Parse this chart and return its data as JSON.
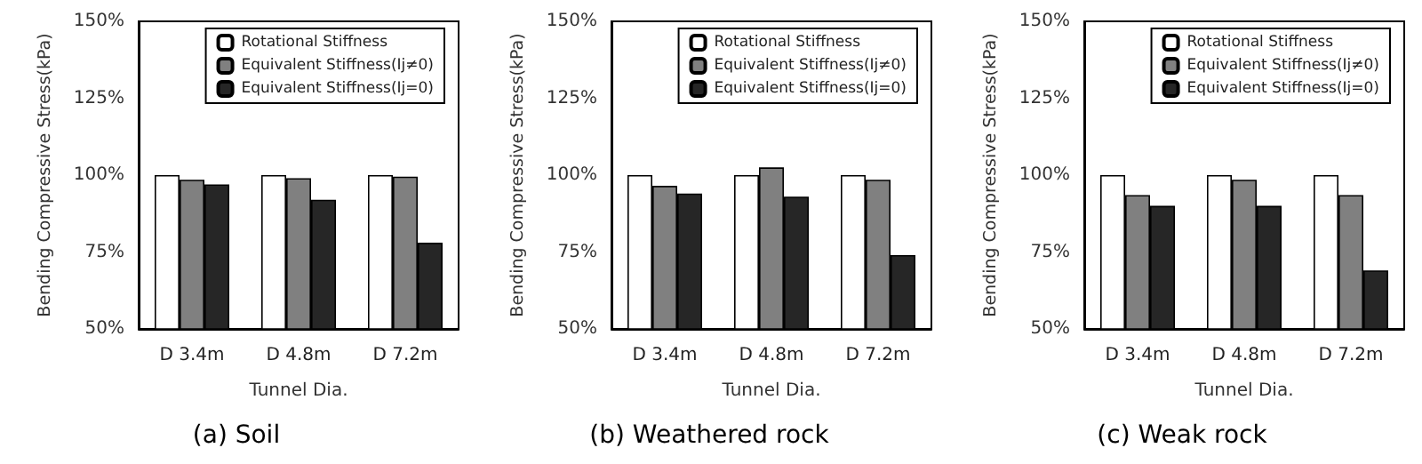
{
  "chart_data": [
    {
      "type": "bar",
      "title": "(a) Soil",
      "xlabel": "Tunnel Dia.",
      "ylabel": "Bending Compressive Stress(kPa)",
      "categories": [
        "D 3.4m",
        "D 4.8m",
        "D 7.2m"
      ],
      "ylim": [
        50,
        150
      ],
      "yticks": [
        {
          "value": 50,
          "label": "50%"
        },
        {
          "value": 75,
          "label": "75%"
        },
        {
          "value": 100,
          "label": "100%"
        },
        {
          "value": 125,
          "label": "125%"
        },
        {
          "value": 150,
          "label": "150%"
        }
      ],
      "grid": false,
      "legend": "top",
      "series": [
        {
          "name": "Rotational Stiffness",
          "color": "#ffffff",
          "values": [
            100,
            100,
            100
          ]
        },
        {
          "name": "Equivalent Stiffness(Ij≠0)",
          "color": "#808080",
          "values": [
            98.5,
            99,
            99.5
          ]
        },
        {
          "name": "Equivalent Stiffness(Ij=0)",
          "color": "#262626",
          "values": [
            97,
            92,
            78
          ]
        }
      ]
    },
    {
      "type": "bar",
      "title": "(b) Weathered rock",
      "xlabel": "Tunnel Dia.",
      "ylabel": "Bending Compressive Stress(kPa)",
      "categories": [
        "D 3.4m",
        "D 4.8m",
        "D 7.2m"
      ],
      "ylim": [
        50,
        150
      ],
      "yticks": [
        {
          "value": 50,
          "label": "50%"
        },
        {
          "value": 75,
          "label": "75%"
        },
        {
          "value": 100,
          "label": "100%"
        },
        {
          "value": 125,
          "label": "125%"
        },
        {
          "value": 150,
          "label": "150%"
        }
      ],
      "grid": false,
      "legend": "top",
      "series": [
        {
          "name": "Rotational Stiffness",
          "color": "#ffffff",
          "values": [
            100,
            100,
            100
          ]
        },
        {
          "name": "Equivalent Stiffness(Ij≠0)",
          "color": "#808080",
          "values": [
            96.5,
            102.5,
            98.5
          ]
        },
        {
          "name": "Equivalent Stiffness(Ij=0)",
          "color": "#262626",
          "values": [
            94,
            93,
            74
          ]
        }
      ]
    },
    {
      "type": "bar",
      "title": "(c) Weak rock",
      "xlabel": "Tunnel Dia.",
      "ylabel": "Bending Compressive Stress(kPa)",
      "categories": [
        "D 3.4m",
        "D 4.8m",
        "D 7.2m"
      ],
      "ylim": [
        50,
        150
      ],
      "yticks": [
        {
          "value": 50,
          "label": "50%"
        },
        {
          "value": 75,
          "label": "75%"
        },
        {
          "value": 100,
          "label": "100%"
        },
        {
          "value": 125,
          "label": "125%"
        },
        {
          "value": 150,
          "label": "150%"
        }
      ],
      "grid": false,
      "legend": "top",
      "series": [
        {
          "name": "Rotational Stiffness",
          "color": "#ffffff",
          "values": [
            100,
            100,
            100
          ]
        },
        {
          "name": "Equivalent Stiffness(Ij≠0)",
          "color": "#808080",
          "values": [
            93.5,
            98.5,
            93.5
          ]
        },
        {
          "name": "Equivalent Stiffness(Ij=0)",
          "color": "#262626",
          "values": [
            90,
            90,
            69
          ]
        }
      ]
    }
  ]
}
